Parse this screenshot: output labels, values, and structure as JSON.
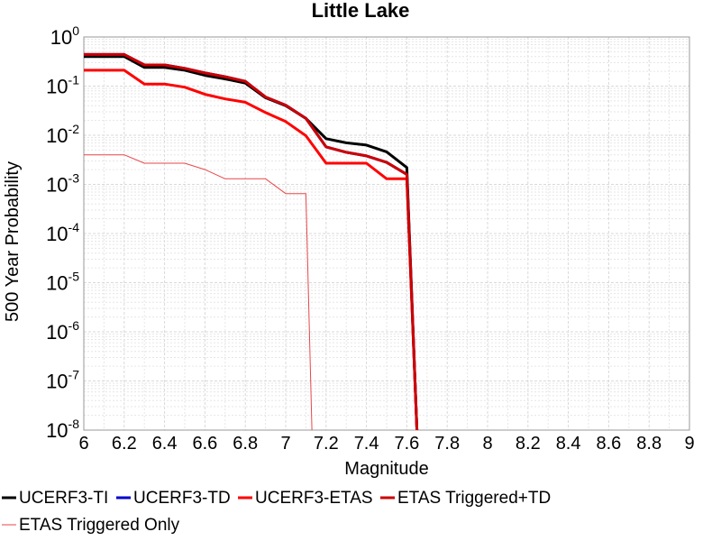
{
  "chart_data": {
    "type": "line",
    "title": "Little Lake",
    "xlabel": "Magnitude",
    "ylabel": "500 Year Probability",
    "xlim": [
      6,
      9
    ],
    "ylim": [
      1e-08,
      1
    ],
    "yscale": "log",
    "grid": true,
    "legend_position": "bottom",
    "x_ticks": [
      "6",
      "6.2",
      "6.4",
      "6.6",
      "6.8",
      "7",
      "7.2",
      "7.4",
      "7.6",
      "7.8",
      "8",
      "8.2",
      "8.4",
      "8.6",
      "8.8",
      "9"
    ],
    "y_ticks": [
      {
        "base": "10",
        "exp": "0",
        "value": 1
      },
      {
        "base": "10",
        "exp": "-1",
        "value": 0.1
      },
      {
        "base": "10",
        "exp": "-2",
        "value": 0.01
      },
      {
        "base": "10",
        "exp": "-3",
        "value": 0.001
      },
      {
        "base": "10",
        "exp": "-4",
        "value": 0.0001
      },
      {
        "base": "10",
        "exp": "-5",
        "value": 1e-05
      },
      {
        "base": "10",
        "exp": "-6",
        "value": 1e-06
      },
      {
        "base": "10",
        "exp": "-7",
        "value": 1e-07
      },
      {
        "base": "10",
        "exp": "-8",
        "value": 1e-08
      }
    ],
    "series": [
      {
        "name": "UCERF3-TI",
        "color": "#000000",
        "width": 3,
        "x": [
          6.0,
          6.2,
          6.3,
          6.4,
          6.5,
          6.6,
          6.7,
          6.8,
          6.9,
          7.0,
          7.1,
          7.2,
          7.3,
          7.4,
          7.5,
          7.6,
          7.65
        ],
        "y": [
          0.4,
          0.4,
          0.24,
          0.24,
          0.21,
          0.165,
          0.14,
          0.115,
          0.058,
          0.04,
          0.022,
          0.0085,
          0.007,
          0.0063,
          0.0046,
          0.0022,
          1e-08
        ]
      },
      {
        "name": "UCERF3-TD",
        "color": "#0000cc",
        "width": 3,
        "x": [
          6.0,
          6.2,
          6.3,
          6.4,
          6.5,
          6.6,
          6.7,
          6.8,
          6.9,
          7.0,
          7.1,
          7.2,
          7.3,
          7.4,
          7.5,
          7.6,
          7.65
        ],
        "y": [
          0.44,
          0.44,
          0.27,
          0.27,
          0.23,
          0.185,
          0.155,
          0.125,
          0.06,
          0.041,
          0.022,
          0.0058,
          0.0045,
          0.0038,
          0.0028,
          0.0016,
          1e-08
        ]
      },
      {
        "name": "UCERF3-ETAS",
        "color": "#ff0000",
        "width": 3,
        "x": [
          6.0,
          6.2,
          6.3,
          6.4,
          6.5,
          6.6,
          6.7,
          6.8,
          6.9,
          7.0,
          7.1,
          7.2,
          7.3,
          7.4,
          7.5,
          7.6,
          7.65
        ],
        "y": [
          0.21,
          0.21,
          0.11,
          0.11,
          0.095,
          0.068,
          0.055,
          0.047,
          0.029,
          0.019,
          0.0098,
          0.0027,
          0.0027,
          0.0027,
          0.0013,
          0.0013,
          1e-08
        ]
      },
      {
        "name": "ETAS Triggered+TD",
        "color": "#cc0000",
        "width": 3,
        "x": [
          6.0,
          6.2,
          6.3,
          6.4,
          6.5,
          6.6,
          6.7,
          6.8,
          6.9,
          7.0,
          7.1,
          7.2,
          7.3,
          7.4,
          7.5,
          7.6,
          7.65
        ],
        "y": [
          0.44,
          0.44,
          0.27,
          0.27,
          0.23,
          0.185,
          0.155,
          0.125,
          0.06,
          0.041,
          0.022,
          0.0058,
          0.0045,
          0.0038,
          0.0028,
          0.0016,
          1e-08
        ]
      },
      {
        "name": "ETAS Triggered Only",
        "color": "#e8464a",
        "width": 1,
        "x": [
          6.0,
          6.2,
          6.3,
          6.4,
          6.5,
          6.6,
          6.7,
          6.8,
          6.9,
          7.0,
          7.1,
          7.13
        ],
        "y": [
          0.004,
          0.004,
          0.0027,
          0.0027,
          0.0027,
          0.002,
          0.0013,
          0.0013,
          0.0013,
          0.00065,
          0.00065,
          1e-08
        ]
      }
    ]
  }
}
